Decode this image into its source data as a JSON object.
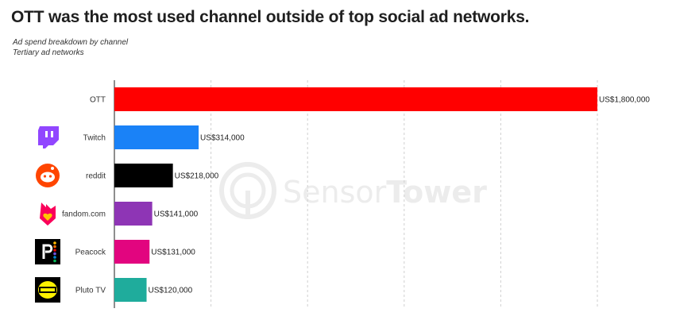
{
  "header": {
    "title": "OTT was the most used channel outside of top social ad networks.",
    "subtitle_line1": "Ad spend breakdown by channel",
    "subtitle_line2": "Tertiary ad networks"
  },
  "watermark": {
    "text_light": "Sensor",
    "text_bold": "Tower"
  },
  "chart_data": {
    "type": "bar",
    "orientation": "horizontal",
    "title": "OTT was the most used channel outside of top social ad networks.",
    "subtitle": "Ad spend breakdown by channel / Tertiary ad networks",
    "categories": [
      "OTT",
      "Twitch",
      "reddit",
      "fandom.com",
      "Peacock",
      "Pluto TV"
    ],
    "values": [
      1800000,
      314000,
      218000,
      141000,
      131000,
      120000
    ],
    "value_labels": [
      "US$1,800,000",
      "US$314,000",
      "US$218,000",
      "US$141,000",
      "US$131,000",
      "US$120,000"
    ],
    "colors": [
      "#ff0000",
      "#1a82f7",
      "#000000",
      "#8e35b5",
      "#e2057f",
      "#1fac9c"
    ],
    "icons": [
      null,
      "twitch-icon",
      "reddit-icon",
      "fandom-icon",
      "peacock-icon",
      "plutotv-icon"
    ],
    "xlim": [
      0,
      1800000
    ],
    "grid": true,
    "gridlines": 5,
    "legend": "none"
  }
}
